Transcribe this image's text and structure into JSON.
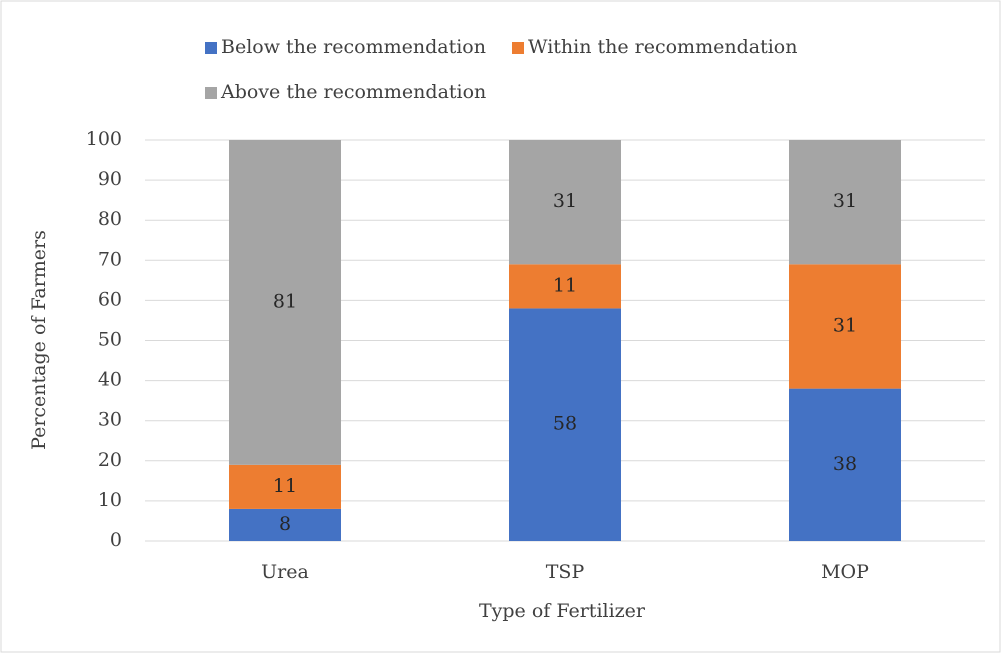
{
  "chart_data": {
    "type": "bar",
    "stacked": true,
    "xlabel": "Type of Fertilizer",
    "ylabel": "Percentage of Farmers",
    "categories": [
      "Urea",
      "TSP",
      "MOP"
    ],
    "series": [
      {
        "name": "Below the recommendation",
        "color": "#4472c4",
        "values": [
          8,
          58,
          38
        ]
      },
      {
        "name": "Within the recommendation",
        "color": "#ed7d31",
        "values": [
          11,
          11,
          31
        ]
      },
      {
        "name": "Above the recommendation",
        "color": "#a5a5a5",
        "values": [
          81,
          31,
          31
        ]
      }
    ],
    "ylim": [
      0,
      100
    ],
    "yticks": [
      0,
      10,
      20,
      30,
      40,
      50,
      60,
      70,
      80,
      90,
      100
    ],
    "grid": true,
    "legend": "top"
  }
}
